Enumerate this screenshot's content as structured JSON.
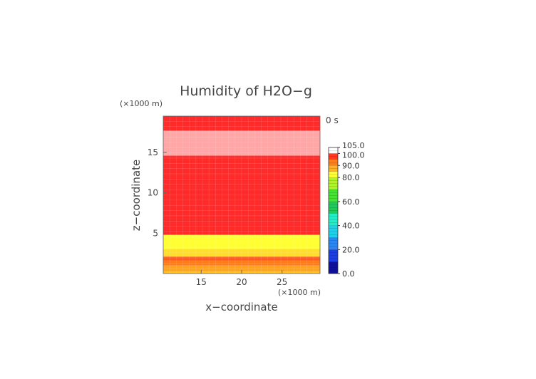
{
  "chart_data": {
    "type": "heatmap",
    "title": "Humidity of H2O−g",
    "time_label": "0 s",
    "xlabel": "x−coordinate",
    "ylabel": "z−coordinate",
    "x_unit": "(×1000 m)",
    "y_unit": "(×1000 m)",
    "xlim": [
      10.3,
      29.7
    ],
    "ylim": [
      0,
      19.5
    ],
    "x_ticks": [
      15,
      20,
      25
    ],
    "y_ticks": [
      5,
      10,
      15
    ],
    "colorbar": {
      "range": [
        0,
        105
      ],
      "tick_labels": [
        "0.0",
        "20.0",
        "40.0",
        "60.0",
        "80.0",
        "90.0",
        "100.0",
        "105.0"
      ],
      "tick_values": [
        0,
        20,
        40,
        60,
        80,
        90,
        100,
        105
      ],
      "levels": [
        {
          "from": 0,
          "to": 10,
          "color": "#10109a"
        },
        {
          "from": 10,
          "to": 20,
          "color": "#1c3ee6"
        },
        {
          "from": 20,
          "to": 30,
          "color": "#2a86f2"
        },
        {
          "from": 30,
          "to": 40,
          "color": "#20cfe8"
        },
        {
          "from": 40,
          "to": 50,
          "color": "#20eec8"
        },
        {
          "from": 50,
          "to": 60,
          "color": "#23c85a"
        },
        {
          "from": 60,
          "to": 70,
          "color": "#42e52e"
        },
        {
          "from": 70,
          "to": 80,
          "color": "#b2f22c"
        },
        {
          "from": 80,
          "to": 85,
          "color": "#ffff33"
        },
        {
          "from": 85,
          "to": 90,
          "color": "#ffb120"
        },
        {
          "from": 90,
          "to": 95,
          "color": "#ff7d1c"
        },
        {
          "from": 95,
          "to": 100,
          "color": "#ff3a22"
        },
        {
          "from": 100,
          "to": 105,
          "color": "#ffffff"
        }
      ]
    },
    "bands": [
      {
        "z_from": 0,
        "z_to": 0.3,
        "color": "#ffc020"
      },
      {
        "z_from": 0.3,
        "z_to": 1.0,
        "color": "#ffa21f"
      },
      {
        "z_from": 1.0,
        "z_to": 1.6,
        "color": "#ff7b1c"
      },
      {
        "z_from": 1.6,
        "z_to": 2.1,
        "color": "#ff5a20"
      },
      {
        "z_from": 2.1,
        "z_to": 3.0,
        "color": "#ffdd2a"
      },
      {
        "z_from": 3.0,
        "z_to": 4.8,
        "color": "#ffff33"
      },
      {
        "z_from": 4.8,
        "z_to": 14.6,
        "color": "#ff2a2a"
      },
      {
        "z_from": 14.6,
        "z_to": 17.7,
        "color": "#ffa6a6"
      },
      {
        "z_from": 17.7,
        "z_to": 19.5,
        "color": "#ff2a2a"
      }
    ],
    "grid": true
  }
}
